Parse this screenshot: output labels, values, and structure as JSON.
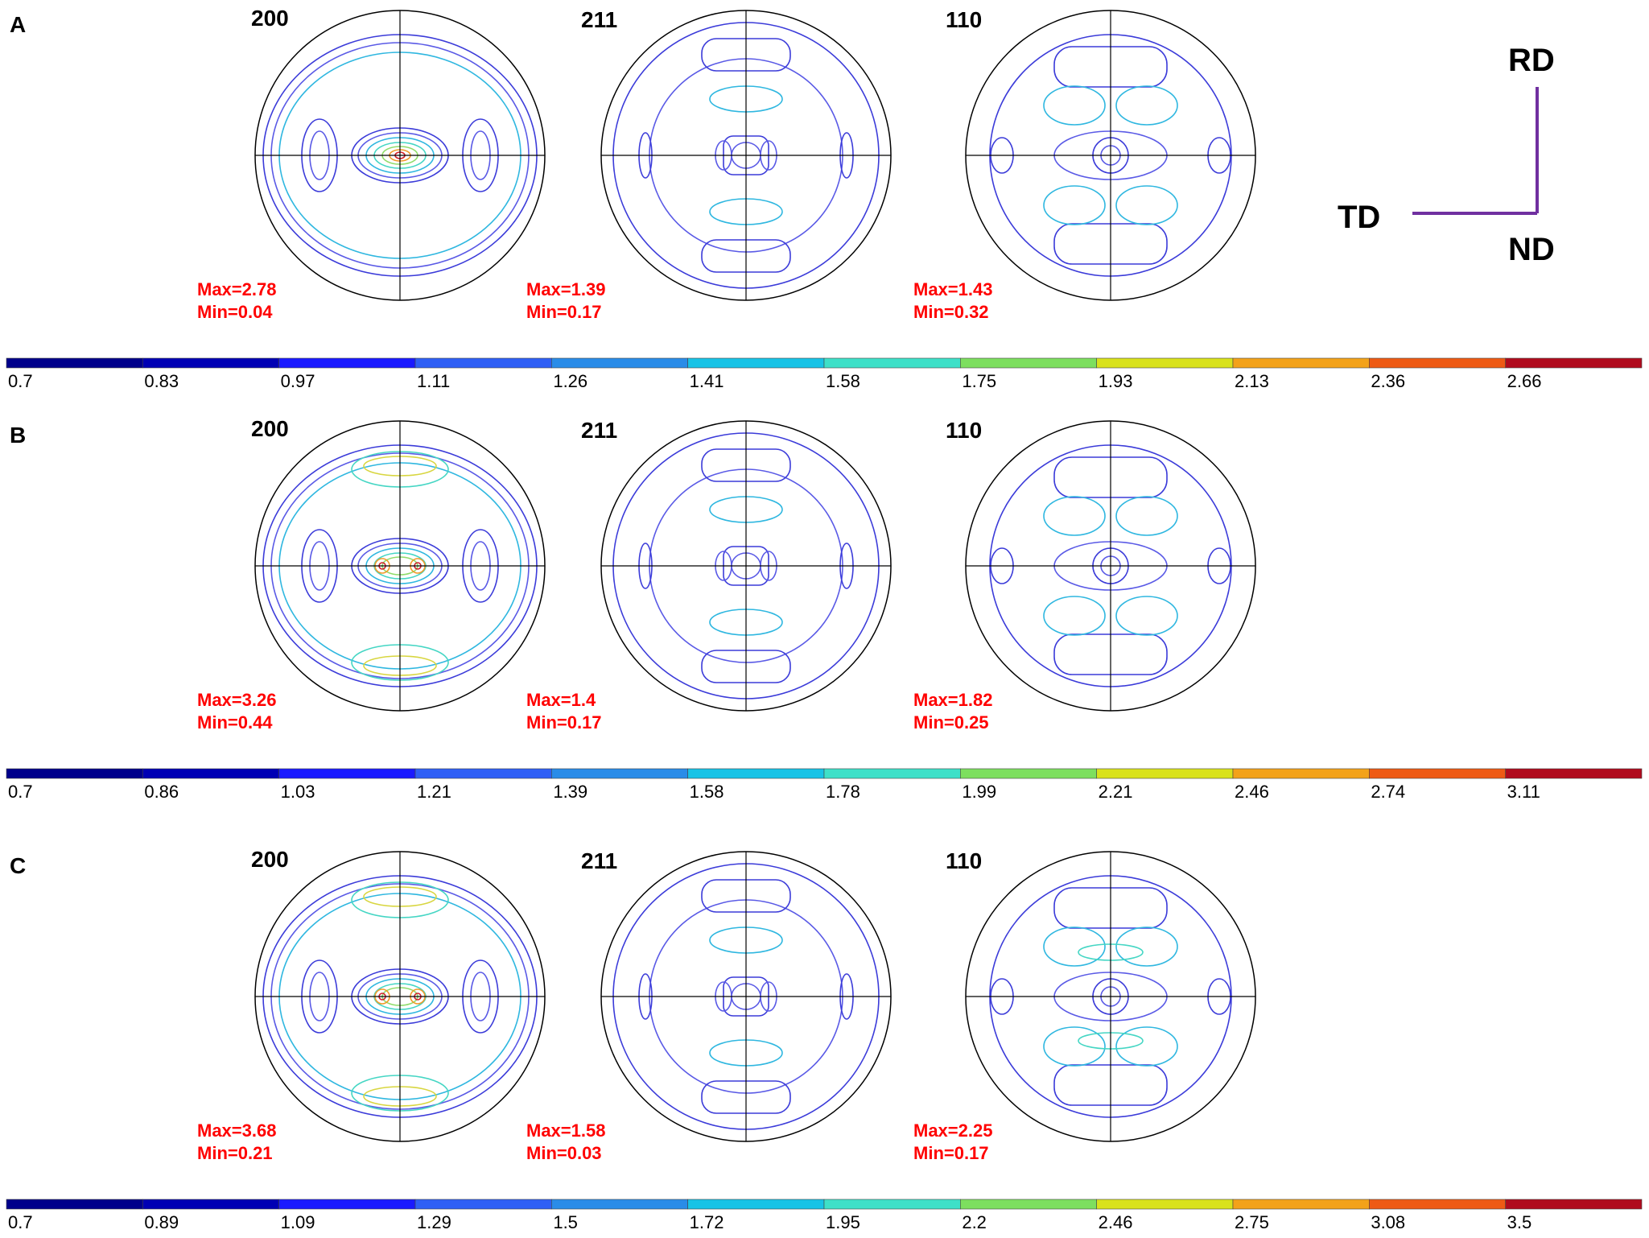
{
  "panels": [
    {
      "id": "A",
      "poles": [
        {
          "hkl": "200",
          "max": "Max=2.78",
          "min": "Min=0.04"
        },
        {
          "hkl": "211",
          "max": "Max=1.39",
          "min": "Min=0.17"
        },
        {
          "hkl": "110",
          "max": "Max=1.43",
          "min": "Min=0.32"
        }
      ],
      "scale": [
        "0.7",
        "0.83",
        "0.97",
        "1.11",
        "1.26",
        "1.41",
        "1.58",
        "1.75",
        "1.93",
        "2.13",
        "2.36",
        "2.66"
      ]
    },
    {
      "id": "B",
      "poles": [
        {
          "hkl": "200",
          "max": "Max=3.26",
          "min": "Min=0.44"
        },
        {
          "hkl": "211",
          "max": "Max=1.4",
          "min": "Min=0.17"
        },
        {
          "hkl": "110",
          "max": "Max=1.82",
          "min": "Min=0.25"
        }
      ],
      "scale": [
        "0.7",
        "0.86",
        "1.03",
        "1.21",
        "1.39",
        "1.58",
        "1.78",
        "1.99",
        "2.21",
        "2.46",
        "2.74",
        "3.11"
      ]
    },
    {
      "id": "C",
      "poles": [
        {
          "hkl": "200",
          "max": "Max=3.68",
          "min": "Min=0.21"
        },
        {
          "hkl": "211",
          "max": "Max=1.58",
          "min": "Min=0.03"
        },
        {
          "hkl": "110",
          "max": "Max=2.25",
          "min": "Min=0.17"
        }
      ],
      "scale": [
        "0.7",
        "0.89",
        "1.09",
        "1.29",
        "1.5",
        "1.72",
        "1.95",
        "2.2",
        "2.46",
        "2.75",
        "3.08",
        "3.5"
      ]
    }
  ],
  "axes": {
    "rd": "RD",
    "td": "TD",
    "nd": "ND"
  },
  "colors": {
    "label": "#ff0000",
    "frame": "#000000",
    "axis_indicator": "#7030a0",
    "colorbar": [
      "#00008b",
      "#0000b4",
      "#1a1aff",
      "#2f5ff5",
      "#2a8ce8",
      "#18c3e6",
      "#3ee0c8",
      "#7ddf5f",
      "#d9e21c",
      "#f3a21a",
      "#ee5a14",
      "#b00b1e"
    ]
  }
}
